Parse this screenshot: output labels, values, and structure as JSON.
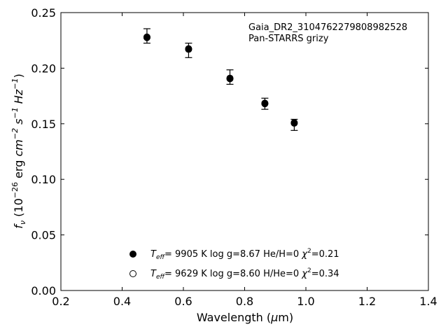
{
  "chart_data": {
    "type": "scatter",
    "title": "",
    "xlabel": {
      "prefix": "Wavelength (",
      "mu": "μ",
      "suffix": "m)"
    },
    "ylabel": {
      "f": "f",
      "f_sub": "ν",
      "open": " (10",
      "exp26": "−26",
      "erg": " erg ",
      "cm": "cm",
      "cm_exp": "−2",
      "s": " s",
      "s_exp": "−1",
      "hz": " Hz",
      "hz_exp": "−1",
      "close": ")"
    },
    "xlim": [
      0.2,
      1.4
    ],
    "ylim": [
      0.0,
      0.25
    ],
    "xticks": [
      {
        "value": 0.2,
        "label": "0.2"
      },
      {
        "value": 0.4,
        "label": "0.4"
      },
      {
        "value": 0.6,
        "label": "0.6"
      },
      {
        "value": 0.8,
        "label": "0.8"
      },
      {
        "value": 1.0,
        "label": "1.0"
      },
      {
        "value": 1.2,
        "label": "1.2"
      },
      {
        "value": 1.4,
        "label": "1.4"
      }
    ],
    "yticks": [
      {
        "value": 0.0,
        "label": "0.00"
      },
      {
        "value": 0.05,
        "label": "0.05"
      },
      {
        "value": 0.1,
        "label": "0.10"
      },
      {
        "value": 0.15,
        "label": "0.15"
      },
      {
        "value": 0.2,
        "label": "0.20"
      },
      {
        "value": 0.25,
        "label": "0.25"
      }
    ],
    "grid": false,
    "observed": {
      "x": [
        0.481,
        0.617,
        0.752,
        0.866,
        0.962
      ],
      "y": [
        0.229,
        0.216,
        0.192,
        0.168,
        0.149
      ],
      "err": [
        0.0065,
        0.0065,
        0.0065,
        0.005,
        0.005
      ]
    },
    "series": [
      {
        "marker": "filled",
        "x": [
          0.481,
          0.617,
          0.752,
          0.866,
          0.962
        ],
        "y": [
          0.2275,
          0.2175,
          0.1905,
          0.168,
          0.1505
        ]
      },
      {
        "marker": "open",
        "x": [
          0.481,
          0.617,
          0.752,
          0.866,
          0.962
        ],
        "y": [
          0.228,
          0.217,
          0.191,
          0.1685,
          0.151
        ]
      }
    ],
    "annotations": [
      "Gaia_DR2_3104762279808982528",
      "Pan-STARRS grizy"
    ],
    "legend_placement": "lower-center",
    "legend": [
      {
        "marker": "filled",
        "teff_label": "T",
        "teff_sub": "eff",
        "teff_value": "=  9905 K  log g=8.67  He/H=0  ",
        "chi": "χ",
        "chi_exp": "2",
        "chi_value": "=0.21"
      },
      {
        "marker": "open",
        "teff_label": "T",
        "teff_sub": "eff",
        "teff_value": "=  9629 K  log g=8.60  H/He=0  ",
        "chi": "χ",
        "chi_exp": "2",
        "chi_value": "=0.34"
      }
    ]
  }
}
